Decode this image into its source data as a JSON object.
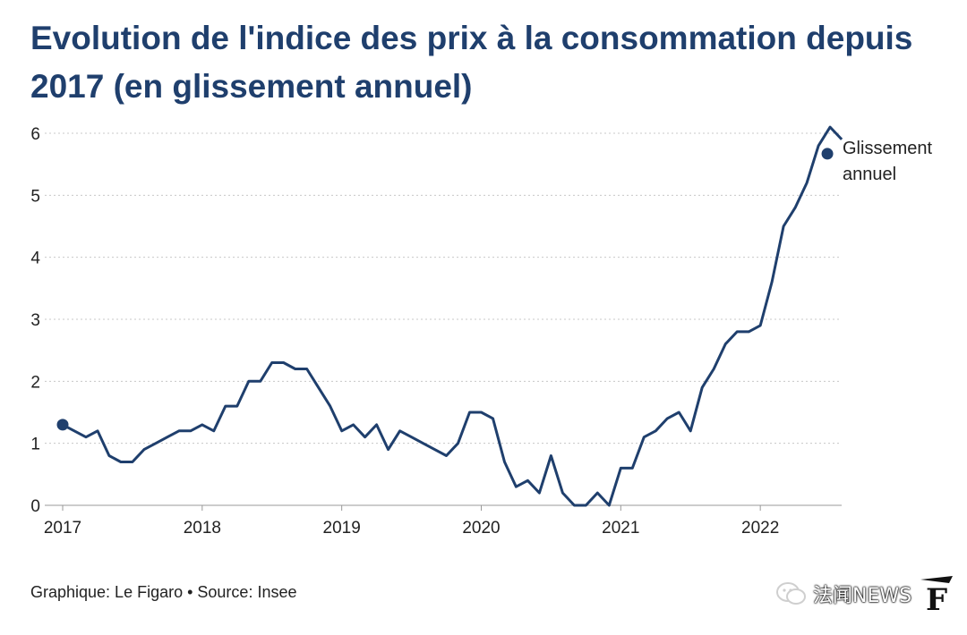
{
  "title": "Evolution de l'indice des prix à la consommation depuis 2017 (en glissement annuel)",
  "footer": "Graphique: Le Figaro • Source: Insee",
  "watermark": {
    "text": "法闻NEWS",
    "logo_letter": "F"
  },
  "colors": {
    "line": "#1f3f6d",
    "title": "#1f3f6d",
    "grid": "#c8c8c8",
    "axis": "#999999",
    "text": "#222222"
  },
  "chart_data": {
    "type": "line",
    "title": "Evolution de l'indice des prix à la consommation depuis 2017 (en glissement annuel)",
    "xlabel": "",
    "ylabel": "",
    "xlim": [
      2017,
      2022.583
    ],
    "ylim": [
      0,
      6
    ],
    "yticks": [
      0,
      1,
      2,
      3,
      4,
      5,
      6
    ],
    "xticks": [
      "2017",
      "2018",
      "2019",
      "2020",
      "2021",
      "2022"
    ],
    "grid": true,
    "x_start": 2017,
    "x_step_months": 1,
    "series": [
      {
        "name": "Glissement annuel",
        "label_lines": [
          "Glissement",
          "annuel"
        ],
        "values": [
          1.3,
          1.2,
          1.1,
          1.2,
          0.8,
          0.7,
          0.7,
          0.9,
          1.0,
          1.1,
          1.2,
          1.2,
          1.3,
          1.2,
          1.6,
          1.6,
          2.0,
          2.0,
          2.3,
          2.3,
          2.2,
          2.2,
          1.9,
          1.6,
          1.2,
          1.3,
          1.1,
          1.3,
          0.9,
          1.2,
          1.1,
          1.0,
          0.9,
          0.8,
          1.0,
          1.5,
          1.5,
          1.4,
          0.7,
          0.3,
          0.4,
          0.2,
          0.8,
          0.2,
          0.0,
          0.0,
          0.2,
          0.0,
          0.6,
          0.6,
          1.1,
          1.2,
          1.4,
          1.5,
          1.2,
          1.9,
          2.2,
          2.6,
          2.8,
          2.8,
          2.9,
          3.6,
          4.5,
          4.8,
          5.2,
          5.8,
          6.1,
          5.9
        ]
      }
    ]
  }
}
